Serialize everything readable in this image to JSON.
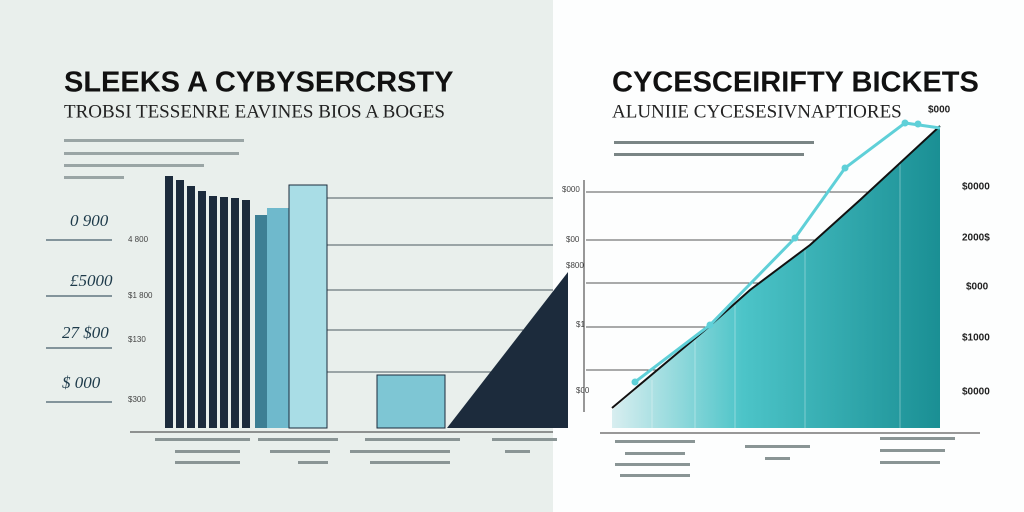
{
  "left_panel": {
    "title": "SLEEKS A CYBYSERCRSTY",
    "subtitle": "TROBSI TESSENRE EAVINES BIOS A BOGES",
    "side_labels": [
      "0 900",
      "£5000",
      "27 $00",
      "$ 000"
    ],
    "axis_labels": [
      "4 800",
      "$1 800",
      "$130",
      "$300"
    ]
  },
  "right_panel": {
    "title": "CYCESCEIRIFTY BICKETS",
    "subtitle": "ALUNIIE CYCESESIVNAPTIORES",
    "top_label": "$000",
    "axis_labels": [
      "$0000",
      "2000$",
      "$000",
      "$1000",
      "$0000"
    ],
    "inner_labels": [
      "$000",
      "$00",
      "$800",
      "$1",
      "$00"
    ]
  }
}
